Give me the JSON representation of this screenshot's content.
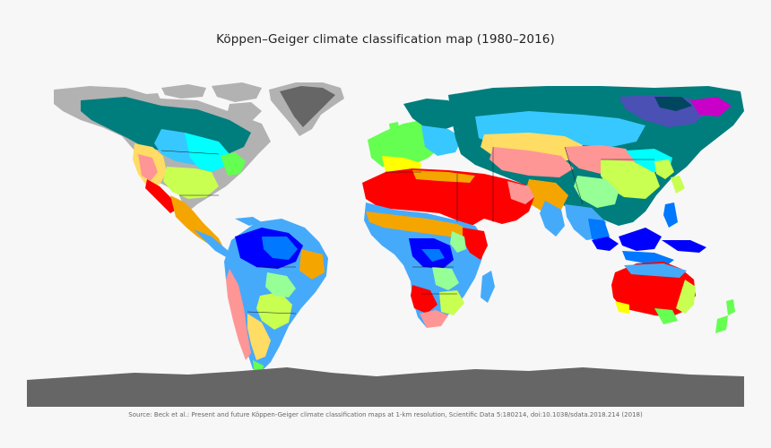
{
  "title": "Köppen–Geiger climate classification map (1980–2016)",
  "source": "Source: Beck et al.: Present and future Köppen-Geiger climate classification maps at 1-km resolution, Scientific Data 5:180214, doi:10.1038/sdata.2018.214 (2018)",
  "projection": "equirectangular",
  "colors": {
    "background": "#f7f7f7",
    "ocean": "#f7f7f7",
    "borders": "#1a1a1a",
    "tropical_rainforest_Af": "#0000fe",
    "tropical_monsoon_Am": "#0078ff",
    "tropical_savanna_Aw": "#46aafa",
    "hot_desert_BWh": "#ff0000",
    "cold_desert_BWk": "#ff9696",
    "hot_steppe_BSh": "#f5a500",
    "cold_steppe_BSk": "#ffdc64",
    "mediterranean_Cs": "#ffff00",
    "humid_subtropical_Cfa": "#c8ff50",
    "oceanic_Cfb": "#64ff50",
    "subtropical_highland_Cwb": "#96ff96",
    "humid_continental_Dfa": "#00ffff",
    "humid_continental_Dfb": "#37c8ff",
    "subarctic_Dfc": "#007d7d",
    "subarctic_Dwc": "#4b50b4",
    "extreme_subarctic_Dfd": "#00465f",
    "dry_summer_continental_Ds": "#c800c8",
    "tundra_ET": "#b2b2b2",
    "ice_cap_EF": "#666666"
  }
}
